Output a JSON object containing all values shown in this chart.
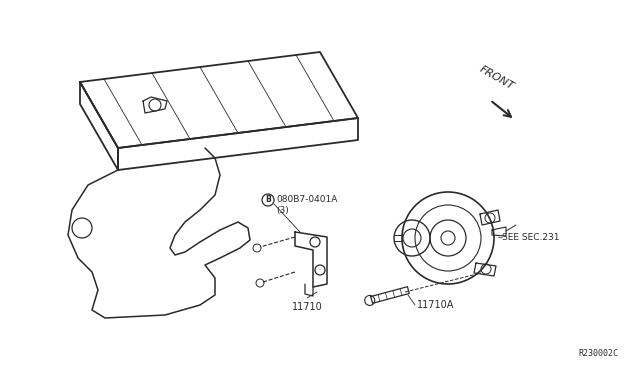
{
  "bg_color": "#ffffff",
  "line_color": "#2a2a2a",
  "text_color": "#2a2a2a",
  "part_number_label": "080B7-0401A",
  "part_number_sub": "(3)",
  "part_11710": "11710",
  "part_11710A": "11710A",
  "see_sec": "SEE SEC.231",
  "front_label": "FRONT",
  "ref_code": "R230002C",
  "fig_size": [
    6.4,
    3.72
  ],
  "dpi": 100
}
